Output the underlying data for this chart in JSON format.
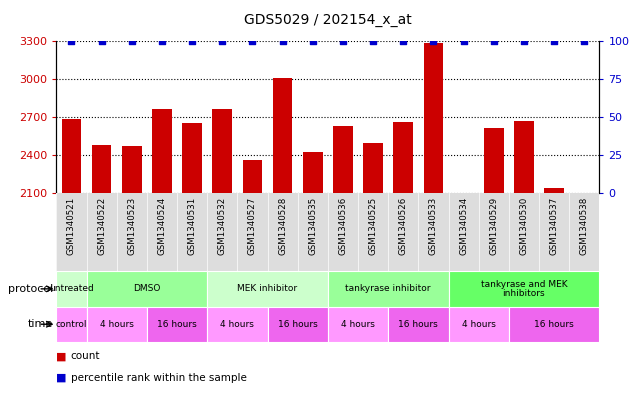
{
  "title": "GDS5029 / 202154_x_at",
  "samples": [
    "GSM1340521",
    "GSM1340522",
    "GSM1340523",
    "GSM1340524",
    "GSM1340531",
    "GSM1340532",
    "GSM1340527",
    "GSM1340528",
    "GSM1340535",
    "GSM1340536",
    "GSM1340525",
    "GSM1340526",
    "GSM1340533",
    "GSM1340534",
    "GSM1340529",
    "GSM1340530",
    "GSM1340537",
    "GSM1340538"
  ],
  "bar_values": [
    2680,
    2480,
    2470,
    2760,
    2650,
    2760,
    2360,
    3010,
    2420,
    2630,
    2490,
    2660,
    3290,
    2100,
    2610,
    2670,
    2140,
    2100
  ],
  "percentile_values": [
    100,
    100,
    100,
    100,
    100,
    100,
    100,
    100,
    100,
    100,
    100,
    100,
    100,
    100,
    100,
    100,
    100,
    100
  ],
  "bar_color": "#cc0000",
  "percentile_color": "#0000cc",
  "ylim_left": [
    2100,
    3300
  ],
  "ylim_right": [
    0,
    100
  ],
  "yticks_left": [
    2100,
    2400,
    2700,
    3000,
    3300
  ],
  "yticks_right": [
    0,
    25,
    50,
    75,
    100
  ],
  "background_color": "#ffffff",
  "title_fontsize": 10,
  "label_row_color": "#dddddd",
  "protocol_groups": [
    {
      "label": "untreated",
      "start": 0,
      "end": 1,
      "color": "#ccffcc"
    },
    {
      "label": "DMSO",
      "start": 1,
      "end": 5,
      "color": "#99ff99"
    },
    {
      "label": "MEK inhibitor",
      "start": 5,
      "end": 9,
      "color": "#ccffcc"
    },
    {
      "label": "tankyrase inhibitor",
      "start": 9,
      "end": 13,
      "color": "#99ff99"
    },
    {
      "label": "tankyrase and MEK\ninhibitors",
      "start": 13,
      "end": 18,
      "color": "#66ff66"
    }
  ],
  "time_groups": [
    {
      "label": "control",
      "start": 0,
      "end": 1,
      "color": "#ff99ff"
    },
    {
      "label": "4 hours",
      "start": 1,
      "end": 3,
      "color": "#ff99ff"
    },
    {
      "label": "16 hours",
      "start": 3,
      "end": 5,
      "color": "#ee66ee"
    },
    {
      "label": "4 hours",
      "start": 5,
      "end": 7,
      "color": "#ff99ff"
    },
    {
      "label": "16 hours",
      "start": 7,
      "end": 9,
      "color": "#ee66ee"
    },
    {
      "label": "4 hours",
      "start": 9,
      "end": 11,
      "color": "#ff99ff"
    },
    {
      "label": "16 hours",
      "start": 11,
      "end": 13,
      "color": "#ee66ee"
    },
    {
      "label": "4 hours",
      "start": 13,
      "end": 15,
      "color": "#ff99ff"
    },
    {
      "label": "16 hours",
      "start": 15,
      "end": 18,
      "color": "#ee66ee"
    }
  ]
}
